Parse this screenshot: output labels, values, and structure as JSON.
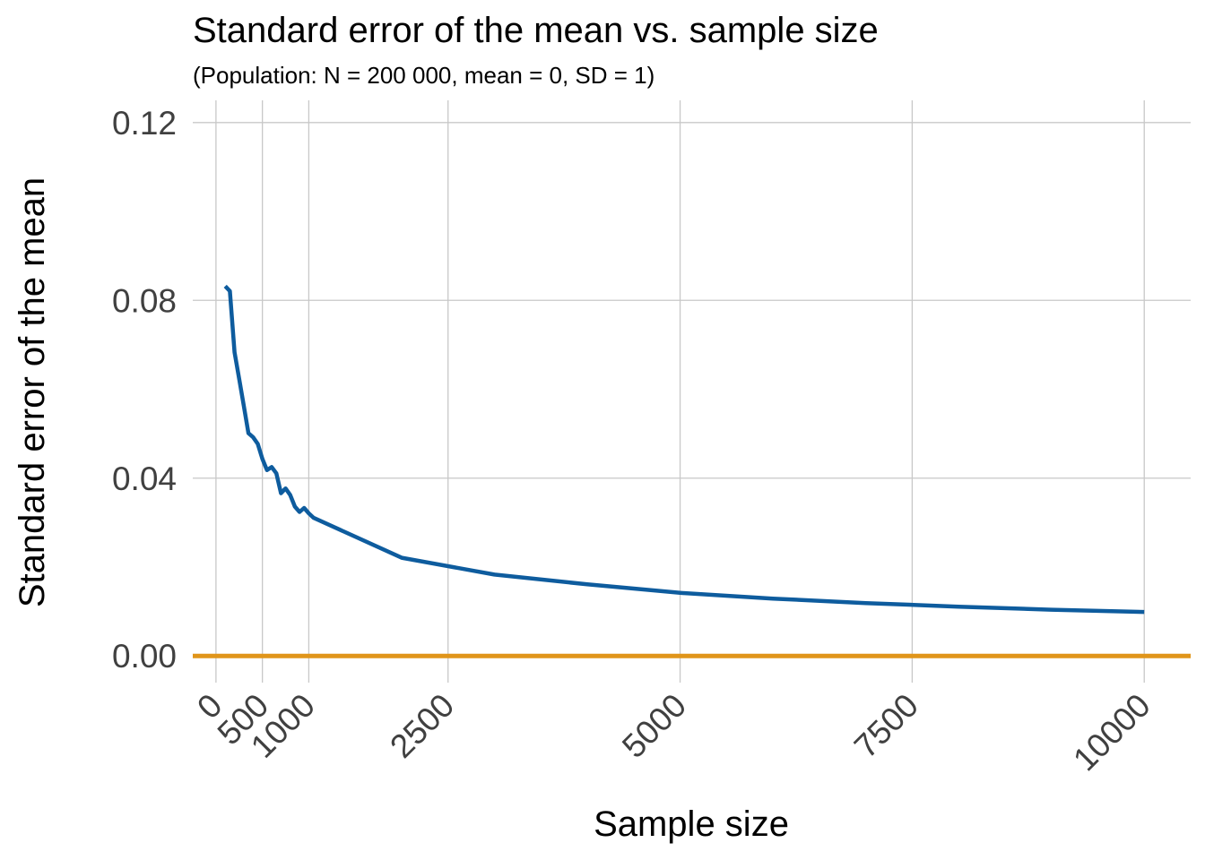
{
  "chart_data": {
    "type": "line",
    "title": "Standard error of the mean vs. sample size",
    "subtitle": "(Population: N = 200 000, mean = 0, SD = 1)",
    "xlabel": "Sample size",
    "ylabel": "Standard error of the mean",
    "xlim": [
      -250,
      10500
    ],
    "ylim": [
      -0.006,
      0.125
    ],
    "x_ticks": [
      0,
      500,
      1000,
      2500,
      5000,
      7500,
      10000
    ],
    "x_tick_labels": [
      "0",
      "500",
      "1000",
      "2500",
      "5000",
      "7500",
      "10000"
    ],
    "y_ticks": [
      0,
      0.04,
      0.08,
      0.12
    ],
    "y_tick_labels": [
      "0.00",
      "0.04",
      "0.08",
      "0.12"
    ],
    "grid": true,
    "series": [
      {
        "color": "#0e5c9e",
        "x": [
          100,
          150,
          200,
          250,
          300,
          350,
          400,
          450,
          500,
          550,
          600,
          650,
          700,
          750,
          800,
          850,
          900,
          950,
          1000,
          1050,
          2000,
          3000,
          4000,
          5000,
          6000,
          7000,
          8000,
          9000,
          10000
        ],
        "y": [
          0.0832,
          0.0821,
          0.0683,
          0.0623,
          0.0563,
          0.0501,
          0.0492,
          0.0477,
          0.0443,
          0.0418,
          0.0425,
          0.0411,
          0.0366,
          0.0377,
          0.0362,
          0.0336,
          0.0324,
          0.0333,
          0.0321,
          0.0311,
          0.0221,
          0.0183,
          0.0161,
          0.0142,
          0.0129,
          0.0119,
          0.0111,
          0.0104,
          0.0099
        ]
      },
      {
        "color": "#e0951a",
        "x": [
          -250,
          10500
        ],
        "y": [
          0,
          0
        ]
      }
    ]
  }
}
